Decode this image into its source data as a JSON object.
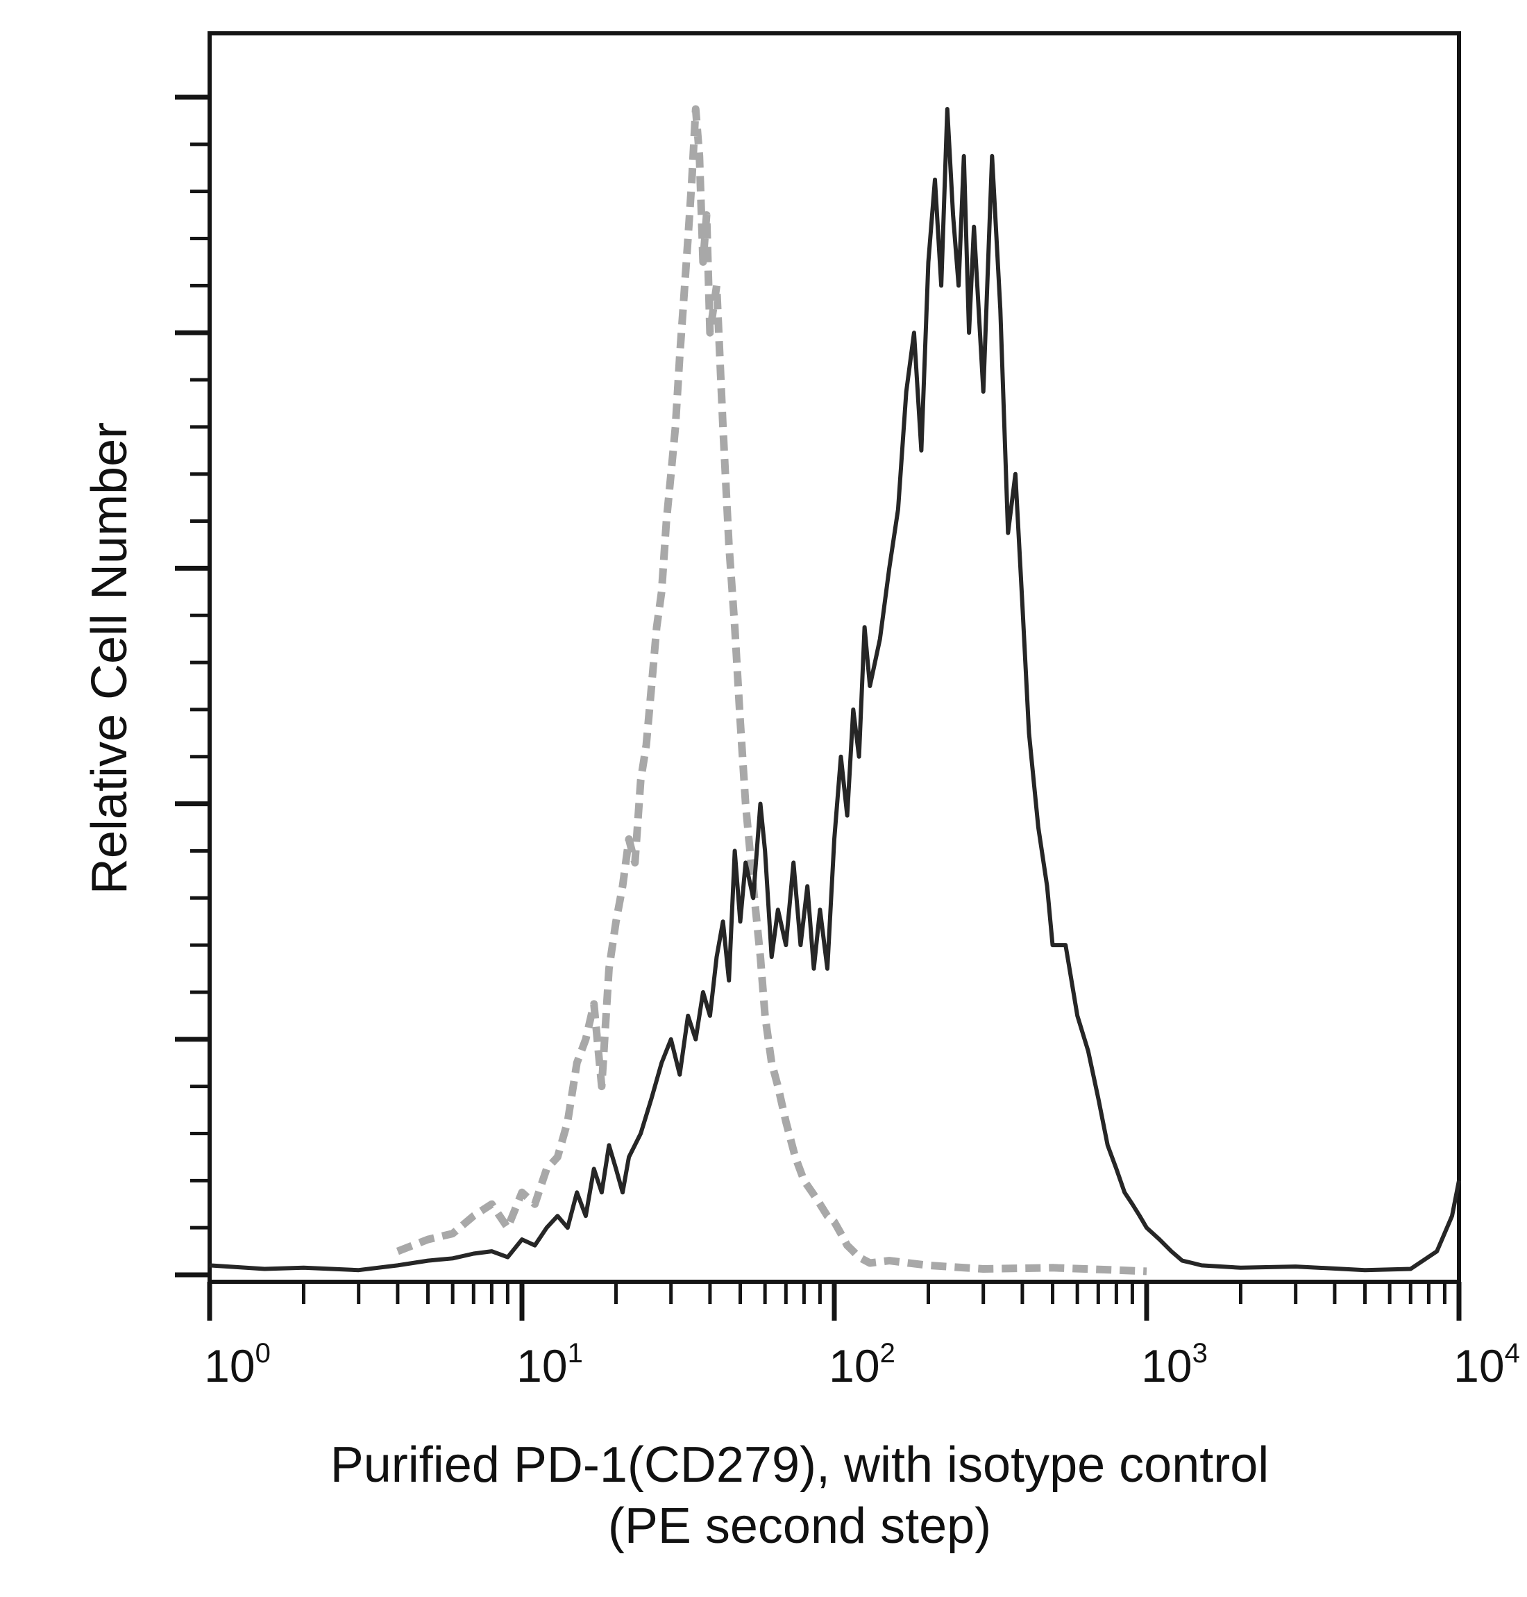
{
  "chart_data": {
    "type": "line",
    "title": "",
    "xlabel": "Purified PD-1(CD279), with isotype control",
    "xlabel_line2": "(PE second step)",
    "ylabel": "Relative Cell Number",
    "x_scale": "log",
    "xlim": [
      1,
      10000
    ],
    "ylim": [
      0,
      1
    ],
    "x_ticks": [
      {
        "base": "10",
        "exp": "0"
      },
      {
        "base": "10",
        "exp": "1"
      },
      {
        "base": "10",
        "exp": "2"
      },
      {
        "base": "10",
        "exp": "3"
      },
      {
        "base": "10",
        "exp": "4"
      }
    ],
    "y_ticks_major_count": 5,
    "grid": false,
    "legend": "none",
    "colors": {
      "stained": "#262626",
      "isotype": "#a8a8a8"
    },
    "series": [
      {
        "style": "solid",
        "x": [
          1,
          1.5,
          2,
          3,
          4,
          5,
          6,
          7,
          8,
          9,
          10,
          11,
          12,
          13,
          14,
          15,
          16,
          17,
          18,
          19,
          20,
          21,
          22,
          24,
          26,
          28,
          30,
          32,
          34,
          36,
          38,
          40,
          42,
          44,
          46,
          48,
          50,
          52,
          55,
          58,
          60,
          63,
          66,
          70,
          74,
          78,
          82,
          86,
          90,
          95,
          100,
          105,
          110,
          115,
          120,
          125,
          130,
          140,
          150,
          160,
          170,
          180,
          190,
          200,
          210,
          220,
          230,
          240,
          250,
          260,
          270,
          280,
          300,
          320,
          340,
          360,
          380,
          400,
          420,
          450,
          480,
          500,
          550,
          600,
          650,
          700,
          750,
          800,
          850,
          900,
          950,
          1000,
          1100,
          1200,
          1300,
          1400,
          1500,
          2000,
          3000,
          5000,
          7000,
          8500,
          9500,
          10000
        ],
        "y": [
          0.008,
          0.005,
          0.006,
          0.004,
          0.008,
          0.012,
          0.014,
          0.018,
          0.02,
          0.015,
          0.03,
          0.025,
          0.04,
          0.05,
          0.04,
          0.07,
          0.05,
          0.09,
          0.07,
          0.11,
          0.09,
          0.07,
          0.1,
          0.12,
          0.15,
          0.18,
          0.2,
          0.17,
          0.22,
          0.2,
          0.24,
          0.22,
          0.27,
          0.3,
          0.25,
          0.36,
          0.3,
          0.35,
          0.32,
          0.4,
          0.36,
          0.27,
          0.31,
          0.28,
          0.35,
          0.28,
          0.33,
          0.26,
          0.31,
          0.26,
          0.37,
          0.44,
          0.39,
          0.48,
          0.44,
          0.55,
          0.5,
          0.54,
          0.6,
          0.65,
          0.75,
          0.8,
          0.7,
          0.86,
          0.93,
          0.84,
          0.99,
          0.9,
          0.84,
          0.95,
          0.8,
          0.89,
          0.75,
          0.95,
          0.82,
          0.63,
          0.68,
          0.57,
          0.46,
          0.38,
          0.33,
          0.28,
          0.28,
          0.22,
          0.19,
          0.15,
          0.11,
          0.09,
          0.07,
          0.06,
          0.05,
          0.04,
          0.03,
          0.02,
          0.012,
          0.01,
          0.008,
          0.006,
          0.007,
          0.004,
          0.005,
          0.02,
          0.05,
          0.08
        ]
      },
      {
        "style": "dashed",
        "x": [
          4,
          5,
          6,
          7,
          8,
          9,
          10,
          11,
          12,
          13,
          14,
          15,
          16,
          17,
          18,
          19,
          20,
          21,
          22,
          23,
          24,
          25,
          26,
          27,
          28,
          29,
          30,
          31,
          32,
          33,
          34,
          35,
          36,
          37,
          38,
          39,
          40,
          42,
          44,
          46,
          48,
          50,
          52,
          55,
          58,
          60,
          63,
          66,
          70,
          75,
          80,
          85,
          90,
          95,
          100,
          105,
          110,
          115,
          120,
          130,
          150,
          200,
          300,
          500,
          800,
          1000
        ],
        "y": [
          0.02,
          0.03,
          0.035,
          0.05,
          0.06,
          0.04,
          0.07,
          0.06,
          0.09,
          0.1,
          0.13,
          0.18,
          0.2,
          0.23,
          0.16,
          0.26,
          0.3,
          0.33,
          0.37,
          0.35,
          0.42,
          0.45,
          0.5,
          0.55,
          0.58,
          0.64,
          0.68,
          0.72,
          0.78,
          0.83,
          0.88,
          0.93,
          0.99,
          0.95,
          0.86,
          0.9,
          0.8,
          0.84,
          0.72,
          0.62,
          0.55,
          0.47,
          0.4,
          0.33,
          0.27,
          0.22,
          0.18,
          0.16,
          0.13,
          0.1,
          0.08,
          0.07,
          0.06,
          0.05,
          0.045,
          0.035,
          0.025,
          0.02,
          0.015,
          0.01,
          0.012,
          0.008,
          0.005,
          0.006,
          0.004,
          0.003
        ]
      }
    ]
  }
}
